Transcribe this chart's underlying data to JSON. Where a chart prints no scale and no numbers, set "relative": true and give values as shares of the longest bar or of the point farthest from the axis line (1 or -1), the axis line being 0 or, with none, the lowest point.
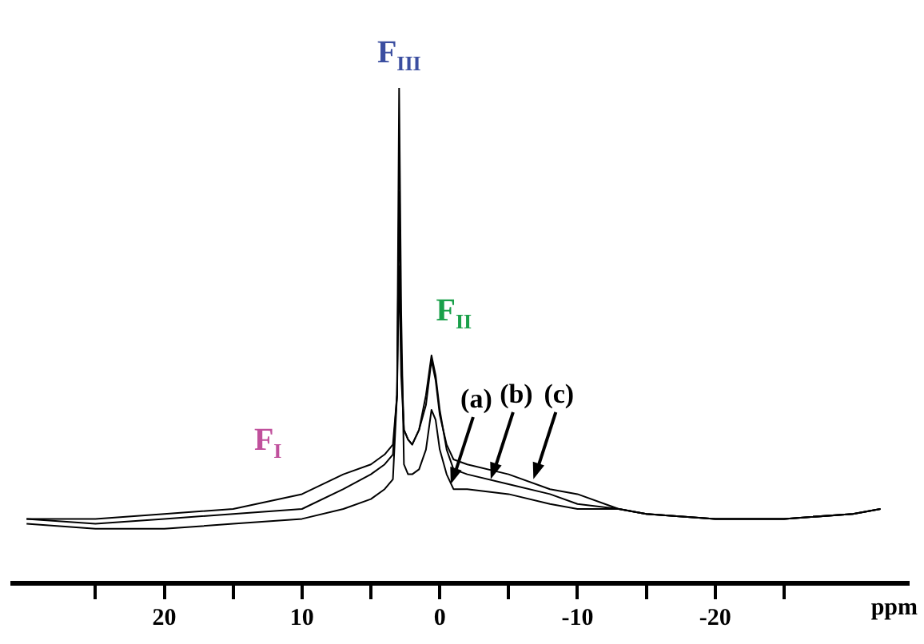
{
  "chart_data": {
    "type": "line",
    "relative": true,
    "xlabel": "ppm",
    "xlim": [
      31,
      -34
    ],
    "xticks": [
      {
        "value": 25,
        "label": null
      },
      20,
      {
        "value": 15,
        "label": null
      },
      10,
      {
        "value": 5,
        "label": null
      },
      0,
      {
        "value": -5,
        "label": null
      },
      -10,
      {
        "value": -15,
        "label": null
      },
      -20,
      {
        "value": -25,
        "label": null
      }
    ],
    "x": [
      30,
      25,
      20,
      15,
      10,
      7,
      5,
      4,
      3.4,
      3.1,
      2.95,
      2.8,
      2.6,
      2.3,
      2.0,
      1.5,
      1.0,
      0.6,
      0.3,
      0,
      -0.5,
      -1,
      -2,
      -5,
      -8,
      -10,
      -13,
      -15,
      -20,
      -25,
      -30,
      -32
    ],
    "series": [
      {
        "color": "#000000",
        "values": [
          0.12,
          0.11,
          0.11,
          0.12,
          0.13,
          0.15,
          0.17,
          0.19,
          0.21,
          0.38,
          1,
          0.55,
          0.24,
          0.22,
          0.22,
          0.23,
          0.27,
          0.35,
          0.33,
          0.27,
          0.22,
          0.19,
          0.19,
          0.18,
          0.16,
          0.15,
          0.15,
          0.14,
          0.13,
          0.13,
          0.14,
          0.15
        ]
      },
      {
        "color": "#000000",
        "values": [
          0.13,
          0.12,
          0.13,
          0.14,
          0.15,
          0.19,
          0.22,
          0.24,
          0.26,
          0.38,
          0.79,
          0.47,
          0.31,
          0.29,
          0.28,
          0.31,
          0.38,
          0.46,
          0.42,
          0.35,
          0.27,
          0.23,
          0.22,
          0.2,
          0.18,
          0.16,
          0.15,
          0.14,
          0.13,
          0.13,
          0.14,
          0.15
        ]
      },
      {
        "color": "#000000",
        "values": [
          0.13,
          0.13,
          0.14,
          0.15,
          0.18,
          0.22,
          0.24,
          0.26,
          0.28,
          0.38,
          0.64,
          0.42,
          0.31,
          0.29,
          0.28,
          0.31,
          0.36,
          0.45,
          0.41,
          0.34,
          0.28,
          0.25,
          0.24,
          0.22,
          0.19,
          0.18,
          0.15,
          0.14,
          0.13,
          0.13,
          0.14,
          0.15
        ]
      }
    ],
    "annotations": [
      "F$_{I}$",
      {
        "text": "F$_{II}$",
        "x": 0.6,
        "y": 0.46
      },
      {
        "text": "F$_{III}$",
        "x": 2.95,
        "y": 1
      },
      {
        "text": "(a)",
        "x": -0.8,
        "y": 0.2
      },
      {
        "text": "(b)",
        "x": -3.7,
        "y": 0.21
      },
      {
        "text": "(c)",
        "x": -6.8,
        "y": 0.21
      }
    ],
    "legend": false,
    "grid": false,
    "marker": "none"
  }
}
